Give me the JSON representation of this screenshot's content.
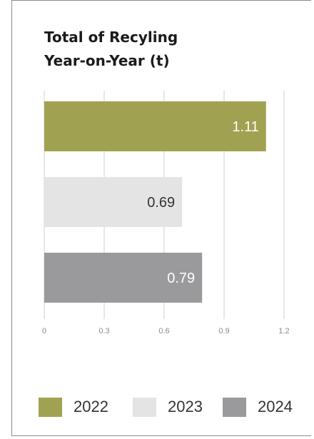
{
  "chart_data": {
    "type": "bar",
    "orientation": "horizontal",
    "title": [
      "Total of Recyling",
      "Year-on-Year (t)"
    ],
    "categories": [
      "2022",
      "2023",
      "2024"
    ],
    "values": [
      1.11,
      0.69,
      0.79
    ],
    "value_labels": [
      "1.11",
      "0.69",
      "0.79"
    ],
    "colors": [
      "#a1a251",
      "#e4e4e5",
      "#9a9a9c"
    ],
    "label_colors": [
      "#ffffff",
      "#333333",
      "#ffffff"
    ],
    "xlim": [
      0,
      1.2
    ],
    "xticks": [
      "0",
      "0.3",
      "0.6",
      "0.9",
      "1.2"
    ],
    "xlabel": "",
    "ylabel": "",
    "grid": true,
    "legend_position": "bottom"
  }
}
